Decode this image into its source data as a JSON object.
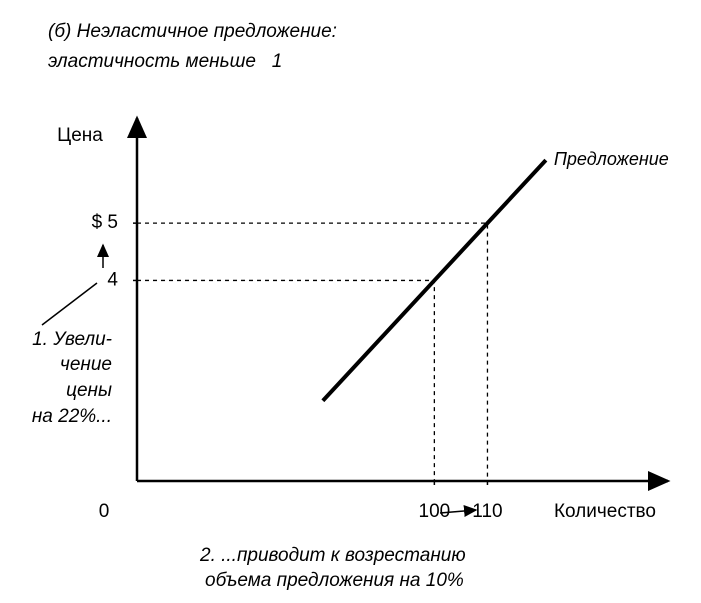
{
  "chart_data": {
    "type": "line",
    "title": "(б) Неэластичное предложение:",
    "subtitle": "эластичность меньше   1",
    "y_label": "Цена",
    "x_label": "Количество",
    "x": [
      79,
      100,
      110,
      121
    ],
    "series": [
      {
        "name": "Предложение",
        "color": "#000000",
        "values": [
          1.9,
          4,
          5,
          6.1
        ]
      }
    ],
    "xlim": [
      44,
      144
    ],
    "ylim": [
      0.5,
      6.8
    ],
    "xticks": [
      100,
      110
    ],
    "yticks": [
      {
        "value": 5,
        "label": "$ 5"
      },
      4
    ],
    "annotations": [
      "0",
      "1. Увели-",
      "чение",
      "цены",
      "на 22%...",
      "2. ...приводит к возрестанию",
      "объема предложения на 10%"
    ]
  }
}
